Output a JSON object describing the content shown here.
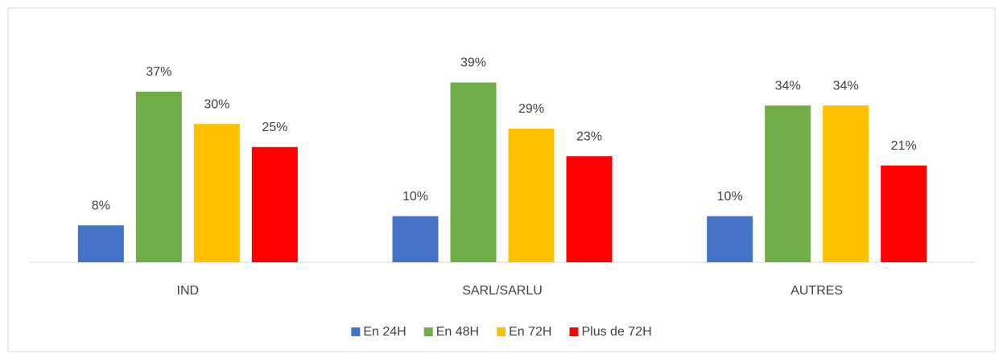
{
  "chart_data": {
    "type": "bar",
    "categories": [
      "IND",
      "SARL/SARLU",
      "AUTRES"
    ],
    "series": [
      {
        "name": "En 24H",
        "color": "#4472c4",
        "values": [
          8,
          10,
          10
        ],
        "value_labels": [
          "8%",
          "10%",
          "10%"
        ]
      },
      {
        "name": "En 48H",
        "color": "#70ad47",
        "values": [
          37,
          39,
          34
        ],
        "value_labels": [
          "37%",
          "39%",
          "34%"
        ]
      },
      {
        "name": "En 72H",
        "color": "#ffc000",
        "values": [
          30,
          29,
          34
        ],
        "value_labels": [
          "30%",
          "29%",
          "34%"
        ]
      },
      {
        "name": "Plus de 72H",
        "color": "#ff0000",
        "values": [
          25,
          23,
          21
        ],
        "value_labels": [
          "25%",
          "23%",
          "21%"
        ]
      }
    ],
    "legend": "bottom"
  }
}
